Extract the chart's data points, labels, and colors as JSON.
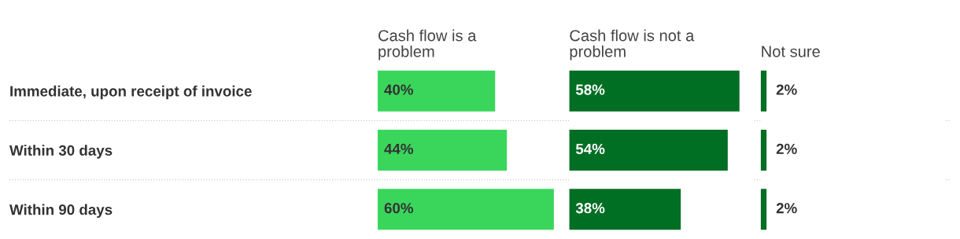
{
  "chart_data": [
    {
      "type": "bar",
      "orientation": "horizontal",
      "title": "Cash flow is a\nproblem",
      "categories": [
        "Immediate, upon receipt of invoice",
        "Within 30 days",
        "Within 90 days"
      ],
      "values": [
        40,
        44,
        60
      ],
      "value_labels": [
        "40%",
        "44%",
        "60%"
      ],
      "color": "#3ad65c",
      "tick_labels": "y"
    },
    {
      "type": "bar",
      "orientation": "horizontal",
      "title": "Cash flow is not a\nproblem",
      "values": [
        58,
        54,
        38
      ],
      "value_labels": [
        "58%",
        "54%",
        "38%"
      ],
      "color": "#006e23"
    },
    {
      "type": "bar",
      "orientation": "horizontal",
      "title": "Not sure",
      "values": [
        2,
        2,
        2
      ],
      "value_labels": [
        "2%",
        "2%",
        "2%"
      ],
      "color": "#006e23"
    }
  ]
}
